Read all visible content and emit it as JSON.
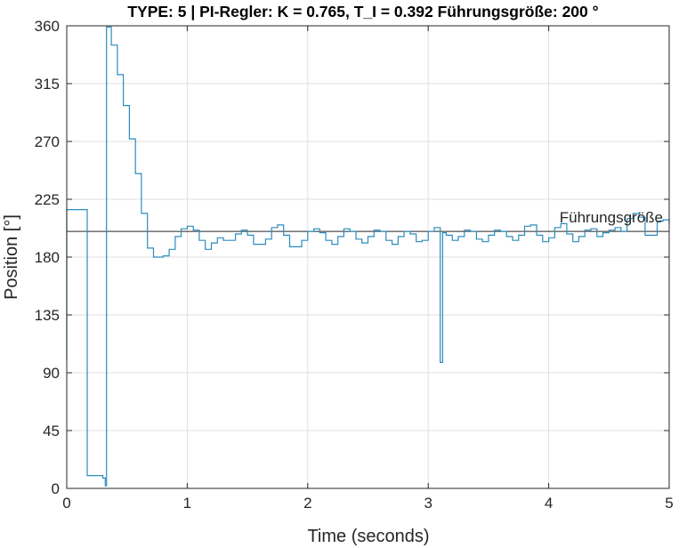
{
  "chart_data": {
    "type": "line",
    "title": "TYPE: 5 | PI-Regler: K = 0.765, T_I = 0.392    Führungsgröße: 200 °",
    "xlabel": "Time (seconds)",
    "ylabel": "Position [°]",
    "xlim": [
      0,
      5
    ],
    "ylim": [
      0,
      360
    ],
    "xticks": [
      0,
      1,
      2,
      3,
      4,
      5
    ],
    "yticks": [
      0,
      45,
      90,
      135,
      180,
      225,
      270,
      315,
      360
    ],
    "grid": true,
    "reference_line": {
      "value": 200,
      "label": "Führungsgröße"
    },
    "series": [
      {
        "color": "#2b8cbe",
        "x": [
          0.0,
          0.0,
          0.02,
          0.17,
          0.17,
          0.24,
          0.3,
          0.32,
          0.33,
          0.33,
          0.37,
          0.42,
          0.47,
          0.52,
          0.57,
          0.62,
          0.67,
          0.72,
          0.76,
          0.8,
          0.85,
          0.9,
          0.95,
          1.0,
          1.05,
          1.1,
          1.15,
          1.2,
          1.25,
          1.3,
          1.35,
          1.4,
          1.45,
          1.5,
          1.55,
          1.6,
          1.65,
          1.7,
          1.75,
          1.8,
          1.85,
          1.9,
          1.95,
          2.0,
          2.05,
          2.1,
          2.15,
          2.2,
          2.25,
          2.3,
          2.35,
          2.4,
          2.45,
          2.5,
          2.55,
          2.6,
          2.65,
          2.7,
          2.75,
          2.8,
          2.85,
          2.9,
          2.95,
          3.0,
          3.05,
          3.08,
          3.1,
          3.1,
          3.12,
          3.12,
          3.15,
          3.2,
          3.25,
          3.3,
          3.35,
          3.4,
          3.45,
          3.5,
          3.55,
          3.6,
          3.65,
          3.7,
          3.75,
          3.8,
          3.85,
          3.9,
          3.95,
          4.0,
          4.05,
          4.1,
          4.15,
          4.2,
          4.25,
          4.3,
          4.35,
          4.4,
          4.45,
          4.5,
          4.55,
          4.6,
          4.65,
          4.7,
          4.75,
          4.8,
          4.85,
          4.9,
          4.95,
          5.0
        ],
        "y": [
          100,
          217,
          217,
          217,
          10,
          10,
          8,
          2,
          2,
          359,
          345,
          322,
          298,
          272,
          245,
          214,
          187,
          180,
          180,
          181,
          186,
          196,
          202,
          204,
          201,
          193,
          186,
          191,
          195,
          193,
          193,
          198,
          201,
          197,
          190,
          190,
          194,
          203,
          205,
          197,
          188,
          188,
          193,
          200,
          202,
          199,
          193,
          190,
          196,
          202,
          200,
          194,
          191,
          196,
          201,
          200,
          193,
          190,
          196,
          200,
          198,
          192,
          193,
          200,
          203,
          203,
          201,
          98,
          98,
          199,
          197,
          193,
          196,
          201,
          200,
          194,
          192,
          197,
          201,
          200,
          196,
          193,
          197,
          204,
          205,
          197,
          192,
          195,
          203,
          206,
          198,
          192,
          196,
          201,
          202,
          196,
          199,
          201,
          203,
          200,
          210,
          214,
          211,
          197,
          197,
          208,
          209,
          206
        ]
      }
    ]
  }
}
